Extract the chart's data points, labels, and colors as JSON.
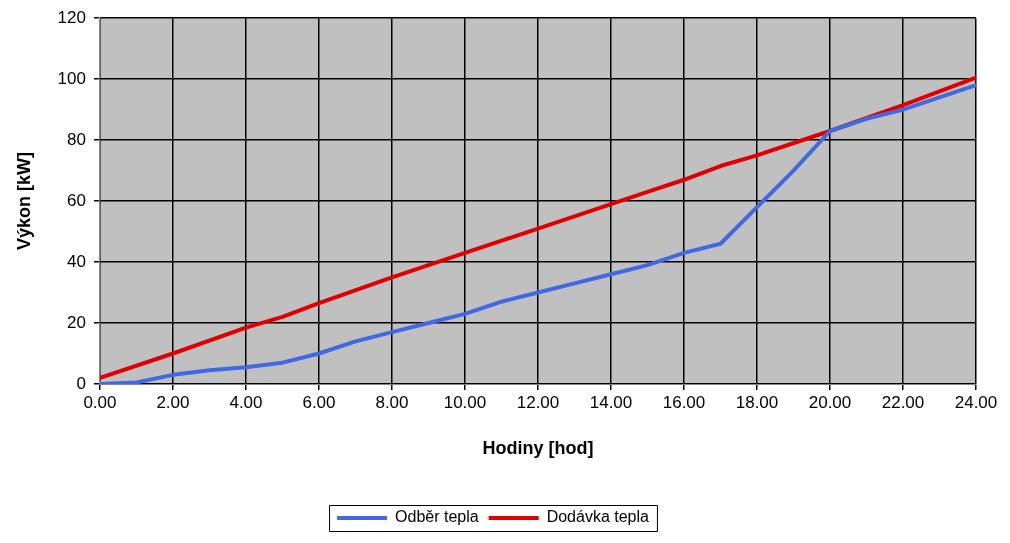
{
  "chart_data": {
    "type": "line",
    "xlabel": "Hodiny [hod]",
    "ylabel": "Výkon [kW]",
    "xlim": [
      0,
      24
    ],
    "ylim": [
      0,
      120
    ],
    "xticks": [
      {
        "value": 0,
        "label": "0.00"
      },
      {
        "value": 2,
        "label": "2.00"
      },
      {
        "value": 4,
        "label": "4.00"
      },
      {
        "value": 6,
        "label": "6.00"
      },
      {
        "value": 8,
        "label": "8.00"
      },
      {
        "value": 10,
        "label": "10.00"
      },
      {
        "value": 12,
        "label": "12.00"
      },
      {
        "value": 14,
        "label": "14.00"
      },
      {
        "value": 16,
        "label": "16.00"
      },
      {
        "value": 18,
        "label": "18.00"
      },
      {
        "value": 20,
        "label": "20.00"
      },
      {
        "value": 22,
        "label": "22.00"
      },
      {
        "value": 24,
        "label": "24.00"
      }
    ],
    "yticks": [
      0,
      20,
      40,
      60,
      80,
      100,
      120
    ],
    "grid": true,
    "legend": "bottom",
    "marker": "none",
    "line_style": "solid",
    "series": [
      {
        "name": "Odběr tepla",
        "color": "#4169e1",
        "x": [
          0,
          1,
          2,
          3,
          4,
          5,
          6,
          7,
          8,
          9,
          10,
          11,
          12,
          13,
          14,
          15,
          16,
          17,
          18,
          19,
          20,
          21,
          22,
          23,
          24
        ],
        "values": [
          0,
          0.5,
          3,
          4.5,
          5.5,
          7,
          10,
          14,
          17,
          20,
          23,
          27,
          30,
          33,
          36,
          39,
          43,
          46,
          58,
          70,
          83,
          87,
          90,
          94,
          98
        ]
      },
      {
        "name": "Dodávka tepla",
        "color": "#e00000",
        "x": [
          0,
          2,
          4,
          5,
          6,
          8,
          10,
          12,
          14,
          15,
          16,
          17,
          18,
          20,
          22,
          24
        ],
        "values": [
          2,
          10,
          18.5,
          22,
          26.5,
          35,
          43,
          51,
          59,
          63,
          67,
          71.5,
          75,
          83,
          91.5,
          100.5
        ]
      }
    ]
  }
}
